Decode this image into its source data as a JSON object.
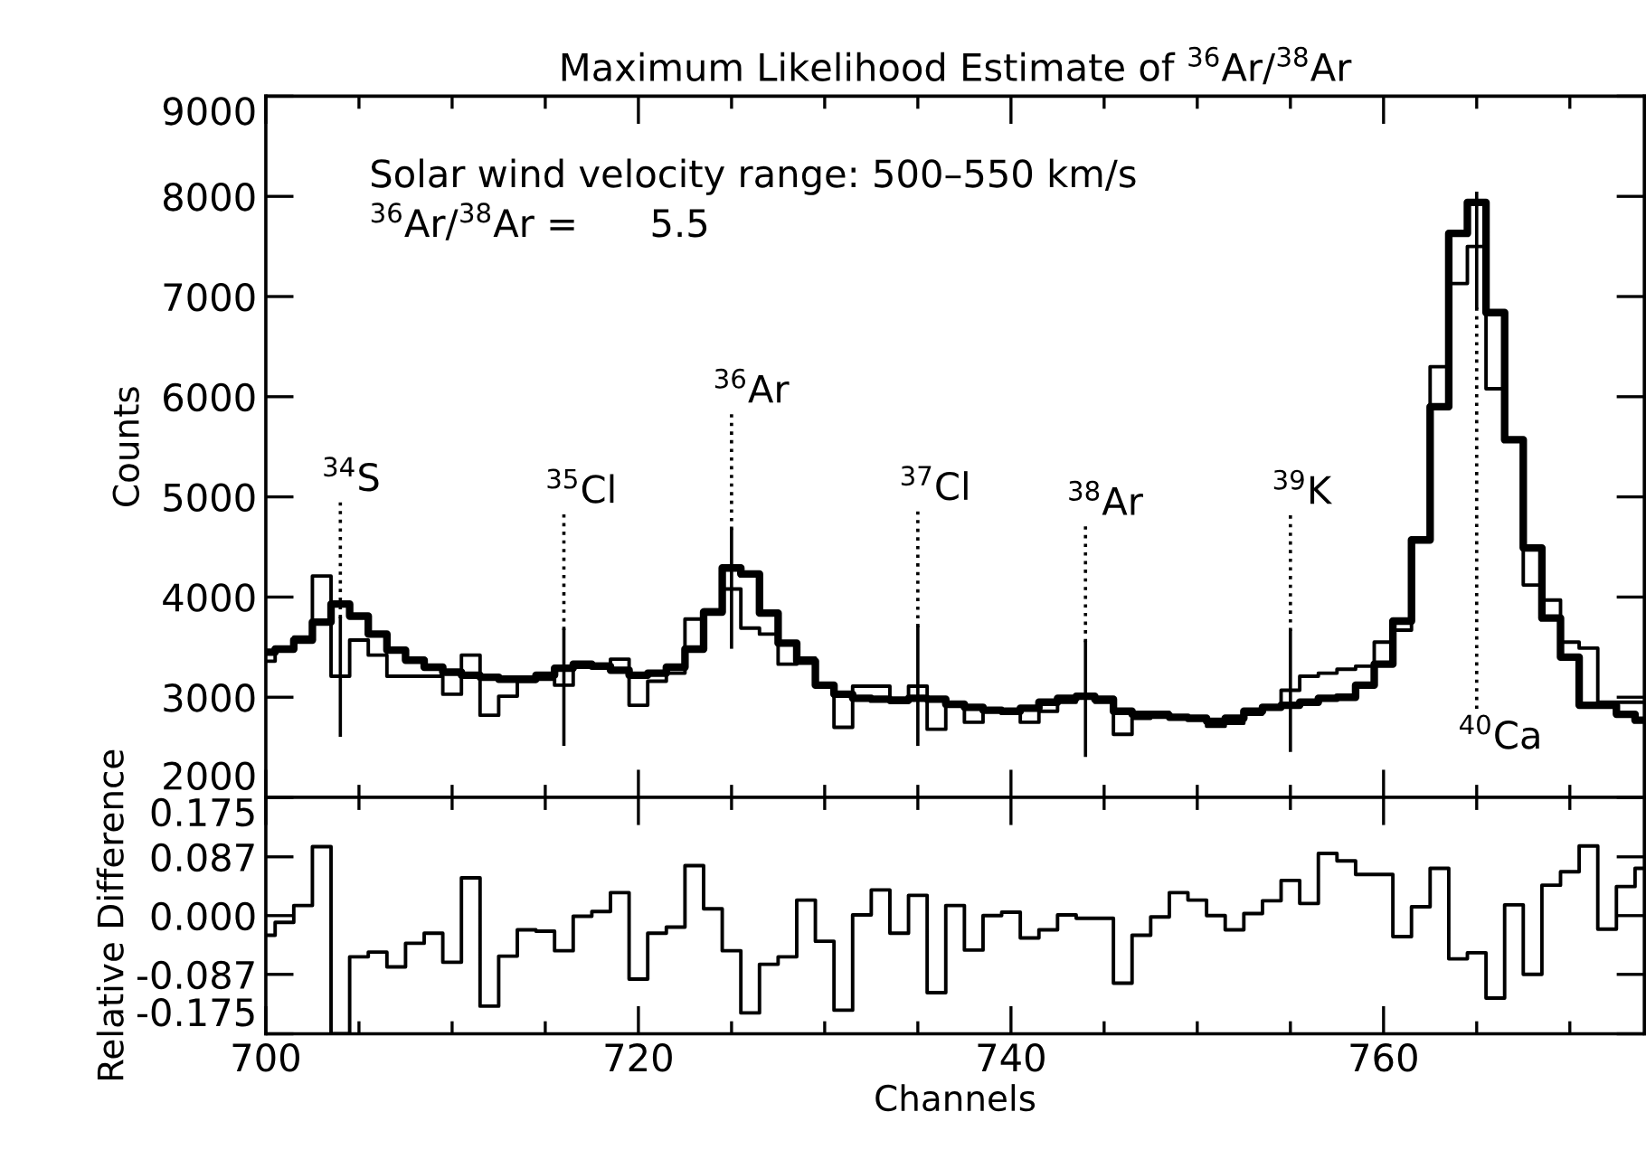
{
  "chart_data": [
    {
      "type": "step",
      "title": "Maximum Likelihood Estimate of $^{36}$Ar/$^{38}$Ar",
      "ylabel": "Counts",
      "x": [
        700,
        701,
        702,
        703,
        704,
        705,
        706,
        707,
        708,
        709,
        710,
        711,
        712,
        713,
        714,
        715,
        716,
        717,
        718,
        719,
        720,
        721,
        722,
        723,
        724,
        725,
        726,
        727,
        728,
        729,
        730,
        731,
        732,
        733,
        734,
        735,
        736,
        737,
        738,
        739,
        740,
        741,
        742,
        743,
        744,
        745,
        746,
        747,
        748,
        749,
        750,
        751,
        752,
        753,
        754,
        755,
        756,
        757,
        758,
        759,
        760,
        761,
        762,
        763,
        764,
        765,
        766,
        767,
        768,
        769,
        770,
        771,
        772,
        773,
        774
      ],
      "series": [
        {
          "color": "#000000",
          "values": [
            3450,
            3480,
            3570,
            3750,
            3930,
            3810,
            3630,
            3470,
            3370,
            3300,
            3250,
            3220,
            3200,
            3180,
            3180,
            3220,
            3290,
            3330,
            3310,
            3270,
            3220,
            3240,
            3300,
            3480,
            3850,
            4290,
            4230,
            3840,
            3540,
            3360,
            3120,
            3030,
            2990,
            2980,
            2970,
            2990,
            2980,
            2930,
            2900,
            2870,
            2860,
            2890,
            2950,
            2990,
            3010,
            2980,
            2860,
            2830,
            2820,
            2800,
            2790,
            2760,
            2790,
            2860,
            2900,
            2920,
            2950,
            2990,
            3000,
            3120,
            3330,
            3760,
            4570,
            5900,
            7630,
            7940,
            6840,
            5570,
            4490,
            3790,
            3400,
            2920,
            2920,
            2830,
            2770
          ]
        },
        {
          "color": "#000000",
          "values": [
            3360,
            3480,
            3600,
            4210,
            3210,
            3570,
            3420,
            3210,
            3210,
            3210,
            3030,
            3420,
            2820,
            3010,
            3160,
            3180,
            3120,
            3300,
            3330,
            3380,
            2920,
            3160,
            3240,
            3780,
            3870,
            4080,
            3690,
            3630,
            3330,
            3390,
            3120,
            2700,
            3110,
            3110,
            2950,
            3110,
            2680,
            2940,
            2750,
            2860,
            2840,
            2750,
            2860,
            2950,
            3010,
            2950,
            2630,
            2790,
            2850,
            2800,
            2790,
            2710,
            2740,
            2830,
            2890,
            3070,
            3210,
            3240,
            3280,
            3310,
            3550,
            3670,
            4560,
            6300,
            7130,
            7500,
            6080,
            5570,
            4120,
            3970,
            3550,
            3490,
            2950,
            2950,
            2950
          ]
        },
        {
          "type": "line",
          "color": "#000000",
          "x": [
            704,
            704
          ],
          "values": [
            2620,
            3790
          ]
        },
        {
          "type": "line",
          "color": "#000000",
          "x": [
            716,
            716
          ],
          "values": [
            2530,
            3670
          ]
        },
        {
          "type": "line",
          "color": "#000000",
          "x": [
            725,
            725
          ],
          "values": [
            3500,
            4670
          ]
        },
        {
          "type": "line",
          "color": "#000000",
          "x": [
            735,
            735
          ],
          "values": [
            2530,
            3700
          ]
        },
        {
          "type": "line",
          "color": "#000000",
          "x": [
            744,
            744
          ],
          "values": [
            2420,
            3550
          ]
        },
        {
          "type": "line",
          "color": "#000000",
          "x": [
            755,
            755
          ],
          "values": [
            2470,
            3660
          ]
        },
        {
          "type": "line",
          "color": "#000000",
          "x": [
            765,
            765
          ],
          "values": [
            6890,
            8030
          ]
        }
      ],
      "xlim": [
        700,
        774
      ],
      "ylim": [
        2000,
        9000
      ],
      "xticks": [
        700,
        {
          "value": 705,
          "label": null
        },
        {
          "value": 710,
          "label": null
        },
        {
          "value": 715,
          "label": null
        },
        720,
        {
          "value": 725,
          "label": null
        },
        {
          "value": 730,
          "label": null
        },
        {
          "value": 735,
          "label": null
        },
        740,
        {
          "value": 745,
          "label": null
        },
        {
          "value": 750,
          "label": null
        },
        {
          "value": 755,
          "label": null
        },
        760,
        {
          "value": 765,
          "label": null
        },
        {
          "value": 770,
          "label": null
        }
      ],
      "yticks": [
        2000,
        3000,
        4000,
        5000,
        6000,
        7000,
        8000,
        9000
      ],
      "tick_labels": "y",
      "annotations": [
        "Solar wind velocity range: 500–550 km/s",
        "$^{36}$Ar/$^{38}$Ar =      5.5",
        {
          "text": "$^{34}$S",
          "x": 704,
          "y": 3790
        },
        {
          "text": "$^{35}$Cl",
          "x": 716,
          "y": 3670
        },
        {
          "text": "$^{36}$Ar",
          "x": 725,
          "y": 4670
        },
        {
          "text": "$^{37}$Cl",
          "x": 735,
          "y": 3700
        },
        {
          "text": "$^{38}$Ar",
          "x": 744,
          "y": 3550
        },
        {
          "text": "$^{39}$K",
          "x": 755,
          "y": 3660
        },
        {
          "text": "$^{40}$Ca",
          "x": 765,
          "y": 6890
        }
      ]
    },
    {
      "type": "step",
      "xlabel": "Channels",
      "ylabel": "Relative Difference",
      "x": [
        700,
        701,
        702,
        703,
        704,
        705,
        706,
        707,
        708,
        709,
        710,
        711,
        712,
        713,
        714,
        715,
        716,
        717,
        718,
        719,
        720,
        721,
        722,
        723,
        724,
        725,
        726,
        727,
        728,
        729,
        730,
        731,
        732,
        733,
        734,
        735,
        736,
        737,
        738,
        739,
        740,
        741,
        742,
        743,
        744,
        745,
        746,
        747,
        748,
        749,
        750,
        751,
        752,
        753,
        754,
        755,
        756,
        757,
        758,
        759,
        760,
        761,
        762,
        763,
        764,
        765,
        766,
        767,
        768,
        769,
        770,
        771,
        772,
        773,
        774
      ],
      "series": [
        {
          "color": "#000000",
          "values": [
            -0.029,
            -0.01,
            0.015,
            0.102,
            -0.175,
            -0.061,
            -0.054,
            -0.076,
            -0.041,
            -0.026,
            -0.069,
            0.056,
            -0.134,
            -0.06,
            -0.021,
            -0.023,
            -0.052,
            -0.001,
            0.006,
            0.034,
            -0.094,
            -0.026,
            -0.017,
            0.074,
            0.01,
            -0.052,
            -0.144,
            -0.072,
            -0.061,
            0.023,
            -0.038,
            -0.14,
            0.001,
            0.038,
            -0.026,
            0.03,
            -0.114,
            0.015,
            -0.051,
            0.0,
            0.005,
            -0.033,
            -0.021,
            0.001,
            -0.004,
            -0.004,
            -0.1,
            -0.029,
            -0.002,
            0.034,
            0.023,
            0.0,
            -0.021,
            0.003,
            0.022,
            0.052,
            0.018,
            0.092,
            0.081,
            0.061,
            0.061,
            -0.031,
            0.013,
            0.07,
            -0.064,
            -0.055,
            -0.122,
            0.016,
            -0.087,
            0.045,
            0.065,
            0.103,
            -0.02,
            0.043,
            0.07
          ]
        }
      ],
      "xlim": [
        700,
        774
      ],
      "ylim": [
        -0.175,
        0.175
      ],
      "xticks": [
        700,
        {
          "value": 705,
          "label": null
        },
        {
          "value": 710,
          "label": null
        },
        {
          "value": 715,
          "label": null
        },
        720,
        {
          "value": 725,
          "label": null
        },
        {
          "value": 730,
          "label": null
        },
        {
          "value": 735,
          "label": null
        },
        740,
        {
          "value": 745,
          "label": null
        },
        {
          "value": 750,
          "label": null
        },
        {
          "value": 755,
          "label": null
        },
        760,
        {
          "value": 765,
          "label": null
        },
        {
          "value": 770,
          "label": null
        }
      ],
      "yticks": [
        0.175,
        0.087,
        {
          "value": 0,
          "label": "0.000"
        },
        -0.087,
        -0.175
      ]
    }
  ]
}
